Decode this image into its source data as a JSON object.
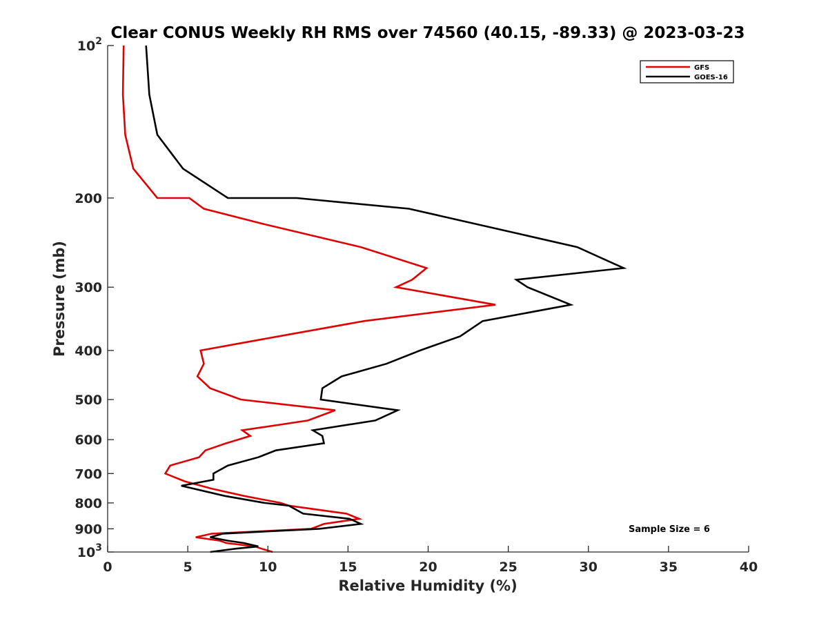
{
  "chart_data": {
    "type": "line",
    "title": "Clear CONUS Weekly RH RMS over 74560 (40.15, -89.33) @ 2023-03-23",
    "xlabel": "Relative Humidity (%)",
    "ylabel": "Pressure (mb)",
    "xlim": [
      0,
      40
    ],
    "ylim": [
      100,
      1000
    ],
    "yscale": "log",
    "y_reversed": true,
    "x_ticks": [
      {
        "value": 0,
        "label": "0"
      },
      {
        "value": 5,
        "label": "5"
      },
      {
        "value": 10,
        "label": "10"
      },
      {
        "value": 15,
        "label": "15"
      },
      {
        "value": 20,
        "label": "20"
      },
      {
        "value": 25,
        "label": "25"
      },
      {
        "value": 30,
        "label": "30"
      },
      {
        "value": 35,
        "label": "35"
      },
      {
        "value": 40,
        "label": "40"
      }
    ],
    "y_ticks": [
      {
        "value": 100,
        "base": "10",
        "exp": "2"
      },
      {
        "value": 200,
        "label": "200"
      },
      {
        "value": 300,
        "label": "300"
      },
      {
        "value": 400,
        "label": "400"
      },
      {
        "value": 500,
        "label": "500"
      },
      {
        "value": 600,
        "label": "600"
      },
      {
        "value": 700,
        "label": "700"
      },
      {
        "value": 800,
        "label": "800"
      },
      {
        "value": 900,
        "label": "900"
      },
      {
        "value": 1000,
        "base": "10",
        "exp": "3"
      }
    ],
    "grid": false,
    "legend": "top-right",
    "annotation": "Sample Size = 6",
    "series": [
      {
        "name": "GFS",
        "color": "#e00000",
        "points": [
          [
            1.0,
            100
          ],
          [
            0.95,
            125
          ],
          [
            1.1,
            150
          ],
          [
            1.6,
            175
          ],
          [
            3.1,
            200
          ],
          [
            5.1,
            200
          ],
          [
            6.0,
            210
          ],
          [
            9.7,
            225
          ],
          [
            15.8,
            250
          ],
          [
            19.9,
            275
          ],
          [
            19.0,
            290
          ],
          [
            18.0,
            300
          ],
          [
            24.2,
            325
          ],
          [
            16.0,
            350
          ],
          [
            10.7,
            375
          ],
          [
            5.8,
            400
          ],
          [
            6.0,
            425
          ],
          [
            5.6,
            450
          ],
          [
            6.4,
            475
          ],
          [
            8.3,
            500
          ],
          [
            14.2,
            525
          ],
          [
            12.5,
            550
          ],
          [
            8.4,
            575
          ],
          [
            8.9,
            590
          ],
          [
            7.4,
            610
          ],
          [
            6.1,
            630
          ],
          [
            5.7,
            650
          ],
          [
            3.9,
            675
          ],
          [
            3.6,
            700
          ],
          [
            4.8,
            725
          ],
          [
            6.5,
            750
          ],
          [
            8.5,
            775
          ],
          [
            10.8,
            800
          ],
          [
            11.3,
            810
          ],
          [
            14.9,
            840
          ],
          [
            15.7,
            860
          ],
          [
            13.5,
            880
          ],
          [
            12.7,
            900
          ],
          [
            6.5,
            920
          ],
          [
            5.5,
            935
          ],
          [
            7.0,
            950
          ],
          [
            7.4,
            960
          ],
          [
            9.2,
            975
          ],
          [
            9.6,
            985
          ],
          [
            10.3,
            1000
          ]
        ]
      },
      {
        "name": "GOES-16",
        "color": "#000000",
        "points": [
          [
            2.4,
            100
          ],
          [
            2.6,
            125
          ],
          [
            3.1,
            150
          ],
          [
            4.7,
            175
          ],
          [
            7.5,
            200
          ],
          [
            11.8,
            200
          ],
          [
            18.8,
            210
          ],
          [
            29.3,
            250
          ],
          [
            32.2,
            275
          ],
          [
            25.5,
            290
          ],
          [
            26.2,
            300
          ],
          [
            28.9,
            325
          ],
          [
            23.4,
            350
          ],
          [
            22.0,
            375
          ],
          [
            19.5,
            400
          ],
          [
            17.4,
            425
          ],
          [
            14.6,
            450
          ],
          [
            13.4,
            475
          ],
          [
            13.3,
            500
          ],
          [
            18.1,
            525
          ],
          [
            16.7,
            550
          ],
          [
            12.8,
            575
          ],
          [
            13.4,
            590
          ],
          [
            13.5,
            610
          ],
          [
            10.5,
            630
          ],
          [
            9.4,
            650
          ],
          [
            7.5,
            675
          ],
          [
            6.6,
            700
          ],
          [
            6.6,
            720
          ],
          [
            4.6,
            740
          ],
          [
            7.3,
            775
          ],
          [
            9.8,
            800
          ],
          [
            11.3,
            810
          ],
          [
            12.2,
            840
          ],
          [
            15.1,
            860
          ],
          [
            15.8,
            880
          ],
          [
            13.2,
            900
          ],
          [
            7.2,
            920
          ],
          [
            6.4,
            935
          ],
          [
            7.5,
            950
          ],
          [
            8.5,
            960
          ],
          [
            9.4,
            975
          ],
          [
            8.0,
            985
          ],
          [
            6.4,
            1000
          ]
        ]
      }
    ]
  }
}
